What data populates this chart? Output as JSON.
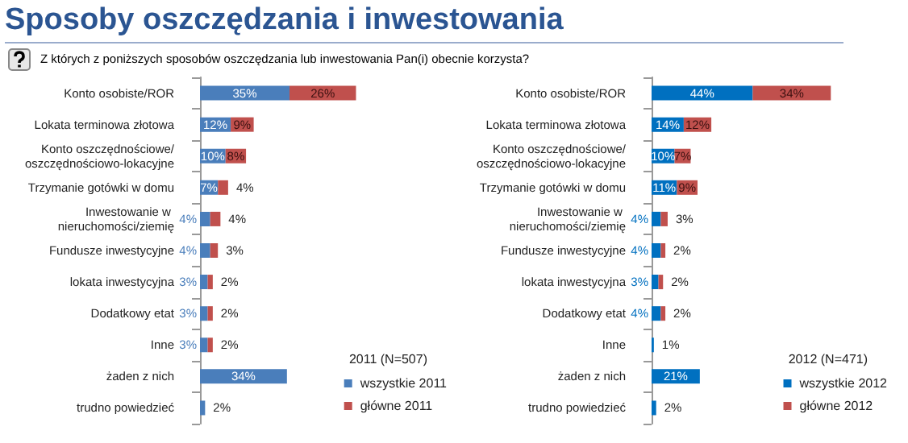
{
  "chart_data": [
    {
      "type": "bar",
      "orientation": "horizontal",
      "stacked": true,
      "title": "Sposoby oszczędzania i inwestowania",
      "subtitle": "Z których z poniższych sposobów oszczędzania lub inwestowania Pan(i) obecnie korzysta?",
      "legend_title": "2011 (N=507)",
      "legend": "bottom right",
      "categories": [
        "Konto osobiste/ROR",
        "Lokata terminowa złotowa",
        "Konto oszczędnościowe/oszczędnościowo-lokacyjne",
        "Trzymanie gotówki w domu",
        "Inwestowanie w nieruchomości/ziemię",
        "Fundusze inwestycyjne",
        "lokata inwestycyjna",
        "Dodatkowy etat",
        "Inne",
        "żaden z nich",
        "trudno powiedzieć"
      ],
      "series": [
        {
          "name": "wszystkie 2011",
          "color": "#4a7ebb",
          "values": [
            35,
            12,
            10,
            7,
            4,
            4,
            3,
            3,
            3,
            34,
            2
          ],
          "value_labels": [
            "35%",
            "12%",
            "10%",
            "7%",
            "4%",
            "4%",
            "3%",
            "3%",
            "3%",
            "34%",
            "2%"
          ]
        },
        {
          "name": "główne 2011",
          "color": "#c0504d",
          "values": [
            26,
            9,
            8,
            4,
            4,
            3,
            2,
            2,
            2,
            null,
            null
          ],
          "value_labels": [
            "26%",
            "9%",
            "8%",
            "4%",
            "4%",
            "3%",
            "2%",
            "2%",
            "2%",
            null,
            null
          ]
        }
      ]
    },
    {
      "type": "bar",
      "orientation": "horizontal",
      "stacked": true,
      "legend_title": "2012 (N=471)",
      "legend": "bottom right",
      "categories": [
        "Konto osobiste/ROR",
        "Lokata terminowa złotowa",
        "Konto oszczędnościowe/oszczędnościowo-lokacyjne",
        "Trzymanie gotówki w domu",
        "Inwestowanie w nieruchomości/ziemię",
        "Fundusze inwestycyjne",
        "lokata inwestycyjna",
        "Dodatkowy etat",
        "Inne",
        "żaden z nich",
        "trudno powiedzieć"
      ],
      "series": [
        {
          "name": "wszystkie 2012",
          "color": "#0070c0",
          "values": [
            44,
            14,
            10,
            11,
            4,
            4,
            3,
            4,
            1,
            21,
            2
          ],
          "value_labels": [
            "44%",
            "14%",
            "10%",
            "11%",
            "4%",
            "4%",
            "3%",
            "4%",
            "1%",
            "21%",
            "2%"
          ]
        },
        {
          "name": "główne 2012",
          "color": "#c0504d",
          "values": [
            34,
            12,
            7,
            9,
            3,
            2,
            2,
            2,
            null,
            null,
            null
          ],
          "value_labels": [
            "34%",
            "12%",
            "7%",
            "9%",
            "3%",
            "2%",
            "2%",
            "2%",
            null,
            null,
            null
          ]
        }
      ]
    }
  ]
}
